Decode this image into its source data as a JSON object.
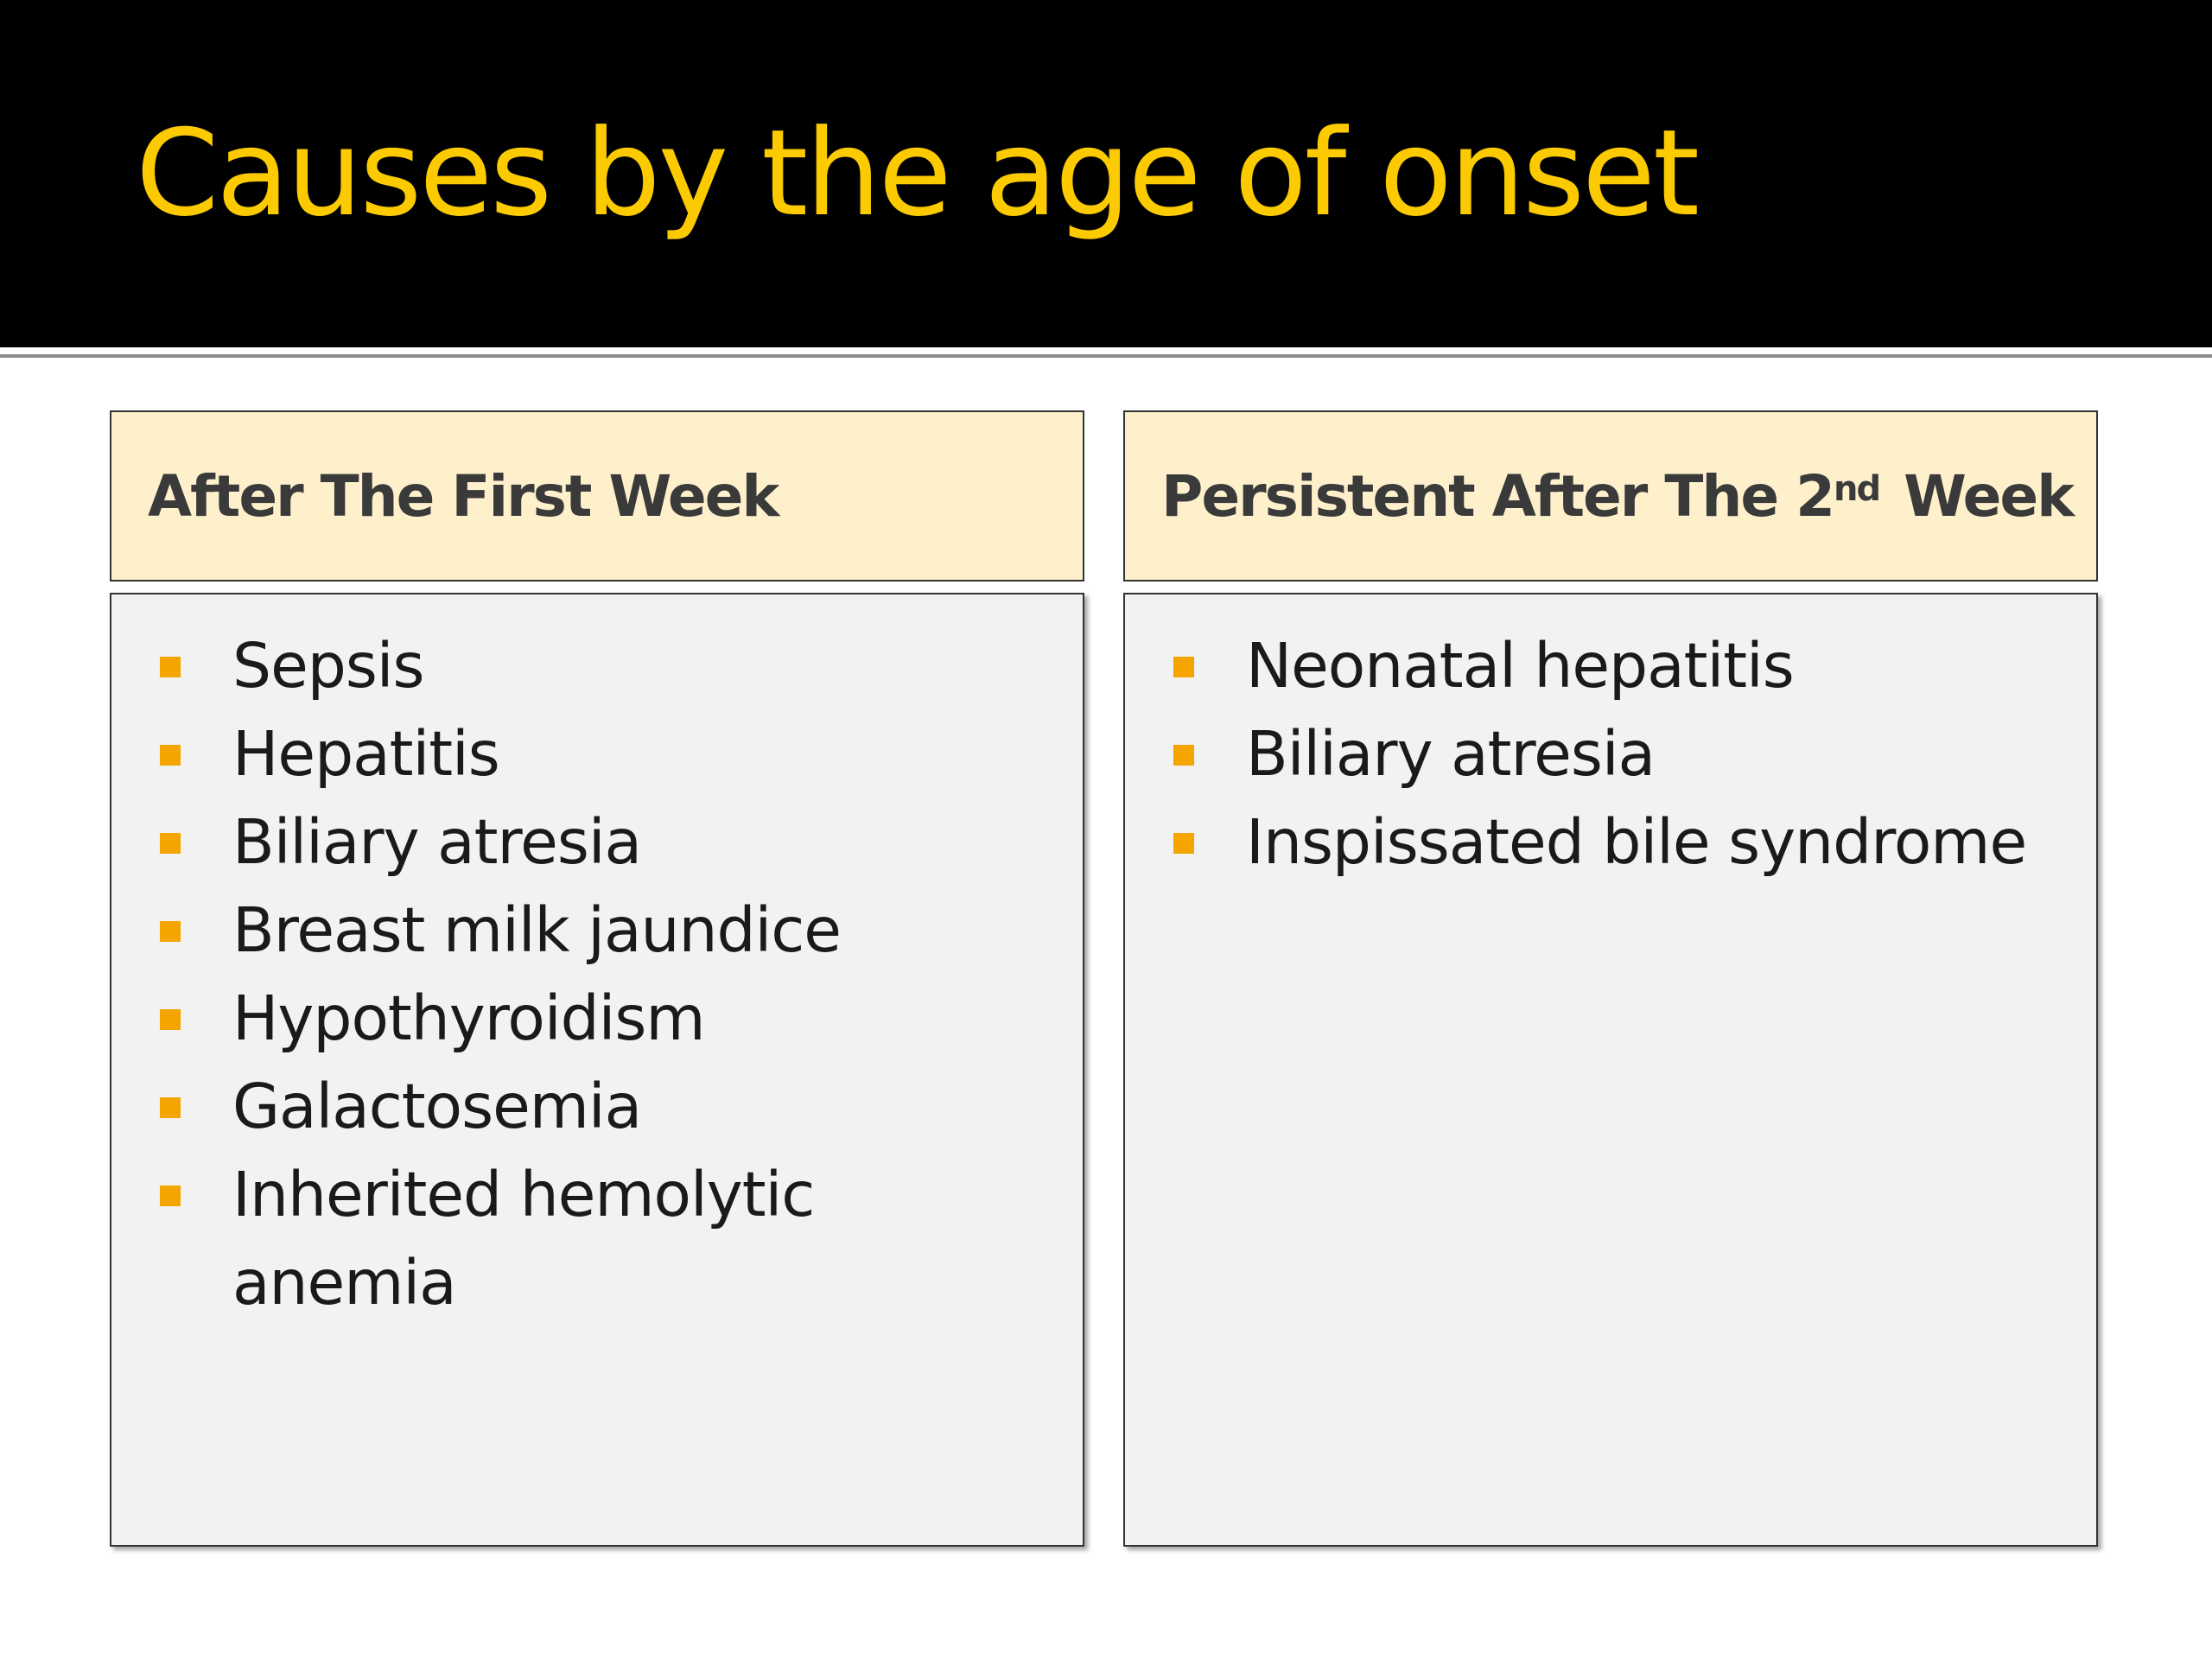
{
  "slide": {
    "title": "Causes by the age of onset",
    "colors": {
      "title_bar": "#000000",
      "title_text": "#fbca00",
      "header_fill": "#fff0cc",
      "body_fill": "#f2f2f2",
      "bullet": "#f4a500"
    }
  },
  "columns": [
    {
      "header": "After The First Week",
      "items": [
        "Sepsis",
        "Hepatitis",
        "Biliary atresia",
        "Breast milk jaundice",
        "Hypothyroidism",
        "Galactosemia",
        "Inherited hemolytic anemia"
      ]
    },
    {
      "header_prefix": "Persistent After The 2",
      "header_sup": "nd",
      "header_suffix": "Week",
      "items": [
        "Neonatal hepatitis",
        "Biliary atresia",
        "Inspissated bile syndrome"
      ]
    }
  ]
}
